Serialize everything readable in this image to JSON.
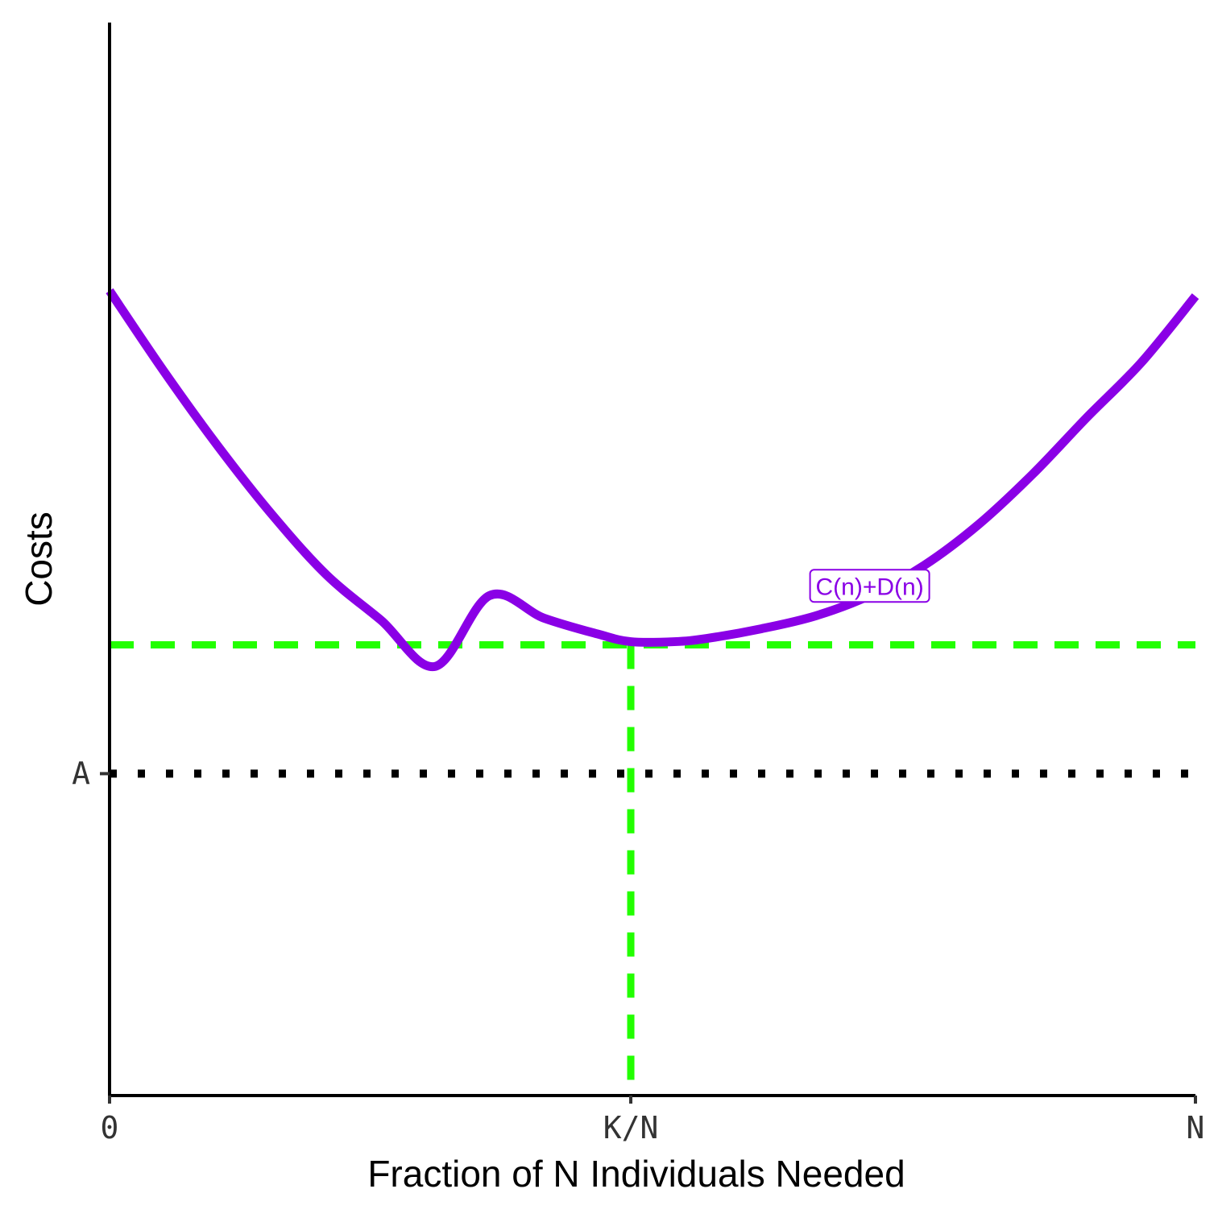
{
  "chart_data": {
    "type": "line",
    "title": "",
    "xlabel": "Fraction of N Individuals Needed",
    "ylabel": "Costs",
    "xlim": [
      0,
      1
    ],
    "ylim": [
      0,
      1
    ],
    "x_ticks": [
      {
        "value": 0,
        "label": "0"
      },
      {
        "value": 0.48,
        "label": "K/N"
      },
      {
        "value": 1,
        "label": "N"
      }
    ],
    "y_ticks": [
      {
        "value": 0.3,
        "label": "A"
      }
    ],
    "series": [
      {
        "name": "C(n)+D(n)",
        "color": "#8A00E6",
        "x": [
          0,
          0.05,
          0.1,
          0.15,
          0.2,
          0.25,
          0.3,
          0.35,
          0.4,
          0.45,
          0.48,
          0.52,
          0.55,
          0.6,
          0.65,
          0.7,
          0.75,
          0.8,
          0.85,
          0.9,
          0.95,
          1
        ],
        "y": [
          0.75,
          0.675,
          0.605,
          0.541,
          0.485,
          0.443,
          0.4,
          0.466,
          0.445,
          0.43,
          0.423,
          0.423,
          0.426,
          0.435,
          0.447,
          0.466,
          0.494,
          0.532,
          0.579,
          0.632,
          0.683,
          0.745
        ]
      }
    ],
    "reference_lines": [
      {
        "orientation": "horizontal",
        "value": 0.42,
        "style": "dashed",
        "color": "#22FF00"
      },
      {
        "orientation": "vertical",
        "value": 0.48,
        "style": "dashed",
        "color": "#22FF00"
      },
      {
        "orientation": "horizontal",
        "value": 0.3,
        "style": "dotted",
        "color": "#000000"
      }
    ],
    "annotations": [
      {
        "text": "C(n)+D(n)",
        "x": 0.7,
        "y": 0.475,
        "color": "#8A00E6"
      }
    ],
    "grid": false,
    "legend": "none"
  }
}
